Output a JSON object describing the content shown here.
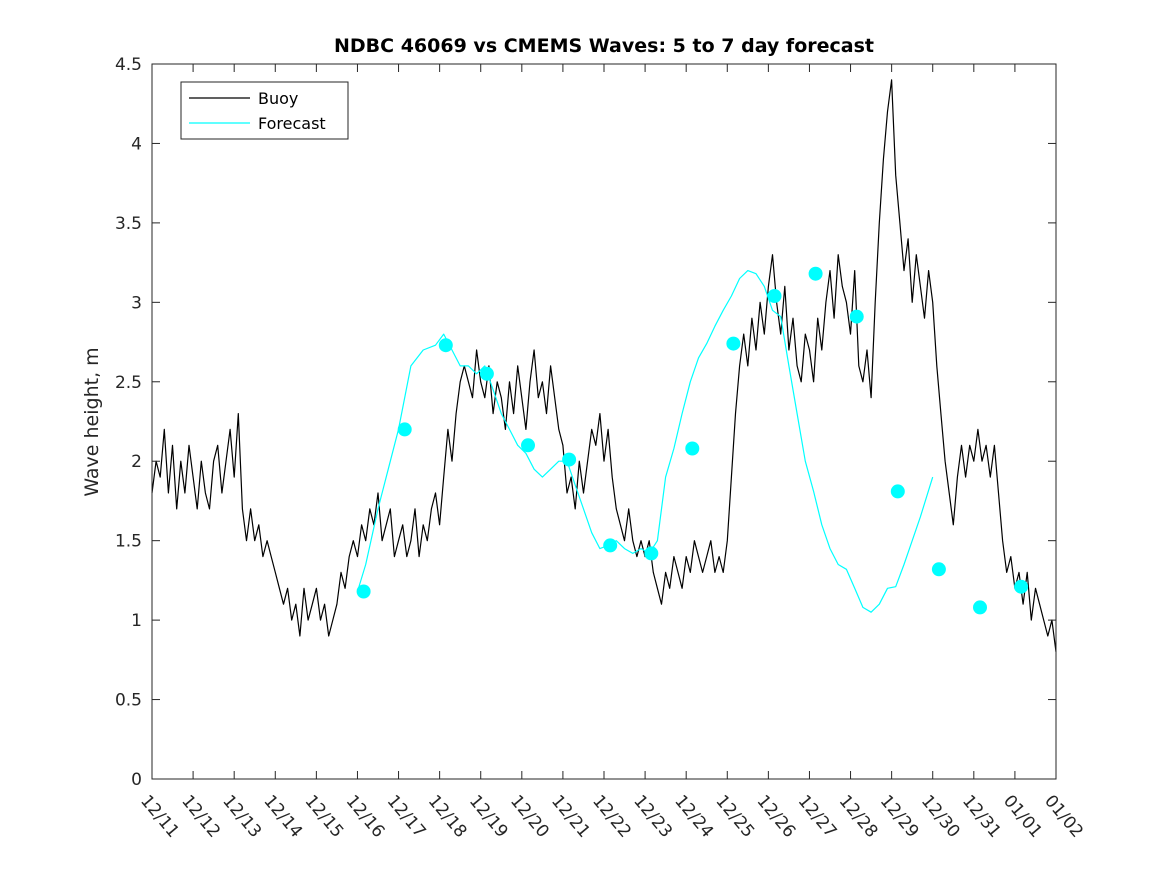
{
  "chart_data": {
    "type": "line",
    "title": "NDBC 46069 vs CMEMS Waves: 5 to 7 day forecast",
    "xlabel": "",
    "ylabel": "Wave height, m",
    "xlim": [
      0,
      22
    ],
    "ylim": [
      0,
      4.5
    ],
    "yticks": [
      0,
      0.5,
      1,
      1.5,
      2,
      2.5,
      3,
      3.5,
      4,
      4.5
    ],
    "ytick_labels": [
      "0",
      "0.5",
      "1",
      "1.5",
      "2",
      "2.5",
      "3",
      "3.5",
      "4",
      "4.5"
    ],
    "xtick_labels": [
      "12/11",
      "12/12",
      "12/13",
      "12/14",
      "12/15",
      "12/16",
      "12/17",
      "12/18",
      "12/19",
      "12/20",
      "12/21",
      "12/22",
      "12/23",
      "12/24",
      "12/25",
      "12/26",
      "12/27",
      "12/28",
      "12/29",
      "12/30",
      "12/31",
      "01/01",
      "01/02"
    ],
    "grid": false,
    "legend": {
      "location": "top-left",
      "entries": [
        "Buoy",
        "Forecast"
      ]
    },
    "colors": {
      "buoy": "#000000",
      "forecast": "#00ffff",
      "axes": "#262626"
    },
    "series": [
      {
        "name": "Buoy",
        "color": "#000000",
        "points": [
          [
            0,
            1.8
          ],
          [
            0.1,
            2.0
          ],
          [
            0.2,
            1.9
          ],
          [
            0.3,
            2.2
          ],
          [
            0.4,
            1.8
          ],
          [
            0.5,
            2.1
          ],
          [
            0.6,
            1.7
          ],
          [
            0.7,
            2.0
          ],
          [
            0.8,
            1.8
          ],
          [
            0.9,
            2.1
          ],
          [
            1.0,
            1.9
          ],
          [
            1.1,
            1.7
          ],
          [
            1.2,
            2.0
          ],
          [
            1.3,
            1.8
          ],
          [
            1.4,
            1.7
          ],
          [
            1.5,
            2.0
          ],
          [
            1.6,
            2.1
          ],
          [
            1.7,
            1.8
          ],
          [
            1.8,
            2.0
          ],
          [
            1.9,
            2.2
          ],
          [
            2.0,
            1.9
          ],
          [
            2.1,
            2.3
          ],
          [
            2.2,
            1.7
          ],
          [
            2.3,
            1.5
          ],
          [
            2.4,
            1.7
          ],
          [
            2.5,
            1.5
          ],
          [
            2.6,
            1.6
          ],
          [
            2.7,
            1.4
          ],
          [
            2.8,
            1.5
          ],
          [
            2.9,
            1.4
          ],
          [
            3.0,
            1.3
          ],
          [
            3.1,
            1.2
          ],
          [
            3.2,
            1.1
          ],
          [
            3.3,
            1.2
          ],
          [
            3.4,
            1.0
          ],
          [
            3.5,
            1.1
          ],
          [
            3.6,
            0.9
          ],
          [
            3.7,
            1.2
          ],
          [
            3.8,
            1.0
          ],
          [
            3.9,
            1.1
          ],
          [
            4.0,
            1.2
          ],
          [
            4.1,
            1.0
          ],
          [
            4.2,
            1.1
          ],
          [
            4.3,
            0.9
          ],
          [
            4.4,
            1.0
          ],
          [
            4.5,
            1.1
          ],
          [
            4.6,
            1.3
          ],
          [
            4.7,
            1.2
          ],
          [
            4.8,
            1.4
          ],
          [
            4.9,
            1.5
          ],
          [
            5.0,
            1.4
          ],
          [
            5.1,
            1.6
          ],
          [
            5.2,
            1.5
          ],
          [
            5.3,
            1.7
          ],
          [
            5.4,
            1.6
          ],
          [
            5.5,
            1.8
          ],
          [
            5.6,
            1.5
          ],
          [
            5.7,
            1.6
          ],
          [
            5.8,
            1.7
          ],
          [
            5.9,
            1.4
          ],
          [
            6.0,
            1.5
          ],
          [
            6.1,
            1.6
          ],
          [
            6.2,
            1.4
          ],
          [
            6.3,
            1.5
          ],
          [
            6.4,
            1.7
          ],
          [
            6.5,
            1.4
          ],
          [
            6.6,
            1.6
          ],
          [
            6.7,
            1.5
          ],
          [
            6.8,
            1.7
          ],
          [
            6.9,
            1.8
          ],
          [
            7.0,
            1.6
          ],
          [
            7.1,
            1.9
          ],
          [
            7.2,
            2.2
          ],
          [
            7.3,
            2.0
          ],
          [
            7.4,
            2.3
          ],
          [
            7.5,
            2.5
          ],
          [
            7.6,
            2.6
          ],
          [
            7.7,
            2.5
          ],
          [
            7.8,
            2.4
          ],
          [
            7.9,
            2.7
          ],
          [
            8.0,
            2.5
          ],
          [
            8.1,
            2.4
          ],
          [
            8.2,
            2.6
          ],
          [
            8.3,
            2.3
          ],
          [
            8.4,
            2.5
          ],
          [
            8.5,
            2.4
          ],
          [
            8.6,
            2.2
          ],
          [
            8.7,
            2.5
          ],
          [
            8.8,
            2.3
          ],
          [
            8.9,
            2.6
          ],
          [
            9.0,
            2.4
          ],
          [
            9.1,
            2.2
          ],
          [
            9.2,
            2.5
          ],
          [
            9.3,
            2.7
          ],
          [
            9.4,
            2.4
          ],
          [
            9.5,
            2.5
          ],
          [
            9.6,
            2.3
          ],
          [
            9.7,
            2.6
          ],
          [
            9.8,
            2.4
          ],
          [
            9.9,
            2.2
          ],
          [
            10.0,
            2.1
          ],
          [
            10.1,
            1.8
          ],
          [
            10.2,
            1.9
          ],
          [
            10.3,
            1.7
          ],
          [
            10.4,
            2.0
          ],
          [
            10.5,
            1.8
          ],
          [
            10.6,
            2.0
          ],
          [
            10.7,
            2.2
          ],
          [
            10.8,
            2.1
          ],
          [
            10.9,
            2.3
          ],
          [
            11.0,
            2.0
          ],
          [
            11.1,
            2.2
          ],
          [
            11.2,
            1.9
          ],
          [
            11.3,
            1.7
          ],
          [
            11.4,
            1.6
          ],
          [
            11.5,
            1.5
          ],
          [
            11.6,
            1.7
          ],
          [
            11.7,
            1.5
          ],
          [
            11.8,
            1.4
          ],
          [
            11.9,
            1.5
          ],
          [
            12.0,
            1.4
          ],
          [
            12.1,
            1.5
          ],
          [
            12.2,
            1.3
          ],
          [
            12.3,
            1.2
          ],
          [
            12.4,
            1.1
          ],
          [
            12.5,
            1.3
          ],
          [
            12.6,
            1.2
          ],
          [
            12.7,
            1.4
          ],
          [
            12.8,
            1.3
          ],
          [
            12.9,
            1.2
          ],
          [
            13.0,
            1.4
          ],
          [
            13.1,
            1.3
          ],
          [
            13.2,
            1.5
          ],
          [
            13.3,
            1.4
          ],
          [
            13.4,
            1.3
          ],
          [
            13.5,
            1.4
          ],
          [
            13.6,
            1.5
          ],
          [
            13.7,
            1.3
          ],
          [
            13.8,
            1.4
          ],
          [
            13.9,
            1.3
          ],
          [
            14.0,
            1.5
          ],
          [
            14.1,
            1.9
          ],
          [
            14.2,
            2.3
          ],
          [
            14.3,
            2.6
          ],
          [
            14.4,
            2.8
          ],
          [
            14.5,
            2.6
          ],
          [
            14.6,
            2.9
          ],
          [
            14.7,
            2.7
          ],
          [
            14.8,
            3.0
          ],
          [
            14.9,
            2.8
          ],
          [
            15.0,
            3.1
          ],
          [
            15.1,
            3.3
          ],
          [
            15.2,
            3.0
          ],
          [
            15.3,
            2.8
          ],
          [
            15.4,
            3.1
          ],
          [
            15.5,
            2.7
          ],
          [
            15.6,
            2.9
          ],
          [
            15.7,
            2.6
          ],
          [
            15.8,
            2.5
          ],
          [
            15.9,
            2.8
          ],
          [
            16.0,
            2.7
          ],
          [
            16.1,
            2.5
          ],
          [
            16.2,
            2.9
          ],
          [
            16.3,
            2.7
          ],
          [
            16.4,
            3.0
          ],
          [
            16.5,
            3.2
          ],
          [
            16.6,
            2.9
          ],
          [
            16.7,
            3.3
          ],
          [
            16.8,
            3.1
          ],
          [
            16.9,
            3.0
          ],
          [
            17.0,
            2.8
          ],
          [
            17.1,
            3.2
          ],
          [
            17.2,
            2.6
          ],
          [
            17.3,
            2.5
          ],
          [
            17.4,
            2.7
          ],
          [
            17.5,
            2.4
          ],
          [
            17.6,
            3.0
          ],
          [
            17.7,
            3.5
          ],
          [
            17.8,
            3.9
          ],
          [
            17.9,
            4.2
          ],
          [
            18.0,
            4.4
          ],
          [
            18.1,
            3.8
          ],
          [
            18.2,
            3.5
          ],
          [
            18.3,
            3.2
          ],
          [
            18.4,
            3.4
          ],
          [
            18.5,
            3.0
          ],
          [
            18.6,
            3.3
          ],
          [
            18.7,
            3.1
          ],
          [
            18.8,
            2.9
          ],
          [
            18.9,
            3.2
          ],
          [
            19.0,
            3.0
          ],
          [
            19.1,
            2.6
          ],
          [
            19.2,
            2.3
          ],
          [
            19.3,
            2.0
          ],
          [
            19.4,
            1.8
          ],
          [
            19.5,
            1.6
          ],
          [
            19.6,
            1.9
          ],
          [
            19.7,
            2.1
          ],
          [
            19.8,
            1.9
          ],
          [
            19.9,
            2.1
          ],
          [
            20.0,
            2.0
          ],
          [
            20.1,
            2.2
          ],
          [
            20.2,
            2.0
          ],
          [
            20.3,
            2.1
          ],
          [
            20.4,
            1.9
          ],
          [
            20.5,
            2.1
          ],
          [
            20.6,
            1.8
          ],
          [
            20.7,
            1.5
          ],
          [
            20.8,
            1.3
          ],
          [
            20.9,
            1.4
          ],
          [
            21.0,
            1.2
          ],
          [
            21.1,
            1.3
          ],
          [
            21.2,
            1.1
          ],
          [
            21.3,
            1.3
          ],
          [
            21.4,
            1.0
          ],
          [
            21.5,
            1.2
          ],
          [
            21.6,
            1.1
          ],
          [
            21.7,
            1.0
          ],
          [
            21.8,
            0.9
          ],
          [
            21.9,
            1.0
          ],
          [
            22.0,
            0.8
          ]
        ]
      },
      {
        "name": "Forecast",
        "color": "#00ffff",
        "points": [
          [
            5.0,
            1.18
          ],
          [
            5.2,
            1.35
          ],
          [
            5.5,
            1.7
          ],
          [
            5.8,
            2.0
          ],
          [
            6.0,
            2.2
          ],
          [
            6.3,
            2.6
          ],
          [
            6.6,
            2.7
          ],
          [
            6.9,
            2.73
          ],
          [
            7.1,
            2.8
          ],
          [
            7.3,
            2.7
          ],
          [
            7.5,
            2.6
          ],
          [
            7.7,
            2.6
          ],
          [
            7.9,
            2.55
          ],
          [
            8.1,
            2.6
          ],
          [
            8.3,
            2.45
          ],
          [
            8.5,
            2.3
          ],
          [
            8.7,
            2.2
          ],
          [
            8.9,
            2.1
          ],
          [
            9.1,
            2.05
          ],
          [
            9.3,
            1.95
          ],
          [
            9.5,
            1.9
          ],
          [
            9.7,
            1.95
          ],
          [
            9.9,
            2.0
          ],
          [
            10.1,
            2.0
          ],
          [
            10.3,
            1.85
          ],
          [
            10.5,
            1.7
          ],
          [
            10.7,
            1.55
          ],
          [
            10.9,
            1.45
          ],
          [
            11.1,
            1.47
          ],
          [
            11.3,
            1.5
          ],
          [
            11.5,
            1.45
          ],
          [
            11.7,
            1.42
          ],
          [
            11.9,
            1.45
          ],
          [
            12.1,
            1.42
          ],
          [
            12.3,
            1.5
          ],
          [
            12.5,
            1.9
          ],
          [
            12.7,
            2.08
          ],
          [
            12.9,
            2.3
          ],
          [
            13.1,
            2.5
          ],
          [
            13.3,
            2.65
          ],
          [
            13.5,
            2.74
          ],
          [
            13.7,
            2.85
          ],
          [
            13.9,
            2.95
          ],
          [
            14.1,
            3.04
          ],
          [
            14.3,
            3.15
          ],
          [
            14.5,
            3.2
          ],
          [
            14.7,
            3.18
          ],
          [
            14.9,
            3.1
          ],
          [
            15.1,
            2.95
          ],
          [
            15.3,
            2.91
          ],
          [
            15.5,
            2.6
          ],
          [
            15.7,
            2.3
          ],
          [
            15.9,
            2.0
          ],
          [
            16.1,
            1.81
          ],
          [
            16.3,
            1.6
          ],
          [
            16.5,
            1.45
          ],
          [
            16.7,
            1.35
          ],
          [
            16.9,
            1.32
          ],
          [
            17.1,
            1.2
          ],
          [
            17.3,
            1.08
          ],
          [
            17.5,
            1.05
          ],
          [
            17.7,
            1.1
          ],
          [
            17.9,
            1.2
          ],
          [
            18.1,
            1.21
          ],
          [
            18.3,
            1.35
          ],
          [
            18.5,
            1.5
          ],
          [
            18.7,
            1.65
          ],
          [
            19.0,
            1.9
          ]
        ]
      }
    ],
    "markers": {
      "name": "Forecast",
      "color": "#00ffff",
      "points": [
        [
          5.15,
          1.18
        ],
        [
          6.15,
          2.2
        ],
        [
          7.15,
          2.73
        ],
        [
          8.15,
          2.55
        ],
        [
          9.15,
          2.1
        ],
        [
          10.15,
          2.01
        ],
        [
          11.15,
          1.47
        ],
        [
          12.15,
          1.42
        ],
        [
          13.15,
          2.08
        ],
        [
          14.15,
          2.74
        ],
        [
          15.15,
          3.04
        ],
        [
          16.15,
          3.18
        ],
        [
          17.15,
          2.91
        ],
        [
          18.15,
          1.81
        ],
        [
          19.15,
          1.32
        ],
        [
          20.15,
          1.08
        ],
        [
          21.15,
          1.21
        ]
      ]
    }
  }
}
